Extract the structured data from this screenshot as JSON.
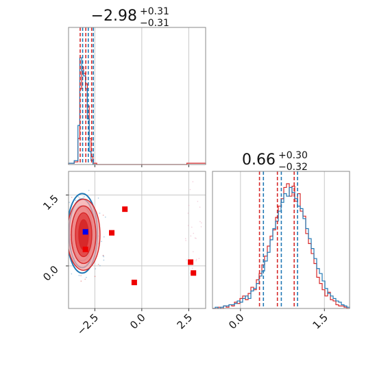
{
  "colors": {
    "red": "#d62728",
    "blue": "#1f77b4",
    "red_fill": "#f4a6a6",
    "red_fill_dark": "#e04040",
    "grid": "#c8c8c8",
    "frame": "#888888",
    "red_marker": "#ee0000",
    "blue_marker": "#0000ee"
  },
  "chart_data": [
    {
      "type": "histogram",
      "panel": "top-left",
      "title_value": "−2.98",
      "title_plus": "+0.31",
      "title_minus": "−0.31",
      "xlim": [
        -3.9,
        3.4
      ],
      "xticks": [
        -2.5,
        0.0,
        2.5
      ],
      "tick_labels_shown": false,
      "grid": true,
      "quantile_lines_red": [
        -3.28,
        -2.98,
        -2.67
      ],
      "quantile_lines_blue": [
        -3.15,
        -2.85,
        -2.58
      ],
      "series": [
        {
          "name": "",
          "color": "red",
          "bins": [
            [
              -3.9,
              -3.6,
              0.01
            ],
            [
              -3.6,
              -3.4,
              0.02
            ],
            [
              -3.4,
              -3.3,
              0.2
            ],
            [
              -3.3,
              -3.2,
              0.58
            ],
            [
              -3.2,
              -3.1,
              0.75
            ],
            [
              -3.1,
              -3.0,
              0.7
            ],
            [
              -3.0,
              -2.9,
              0.62
            ],
            [
              -2.9,
              -2.8,
              0.45
            ],
            [
              -2.8,
              -2.7,
              0.2
            ],
            [
              -2.7,
              -2.6,
              0.06
            ],
            [
              -2.6,
              -2.4,
              0.01
            ],
            [
              -2.4,
              2.4,
              0.0
            ],
            [
              2.4,
              3.4,
              0.01
            ]
          ]
        },
        {
          "name": "",
          "color": "blue",
          "bins": [
            [
              -3.9,
              -3.6,
              0.01
            ],
            [
              -3.6,
              -3.4,
              0.03
            ],
            [
              -3.4,
              -3.3,
              0.3
            ],
            [
              -3.3,
              -3.2,
              0.82
            ],
            [
              -3.2,
              -3.1,
              0.72
            ],
            [
              -3.1,
              -3.0,
              0.68
            ],
            [
              -3.0,
              -2.9,
              0.58
            ],
            [
              -2.9,
              -2.8,
              0.35
            ],
            [
              -2.8,
              -2.7,
              0.1
            ],
            [
              -2.7,
              -2.6,
              0.03
            ],
            [
              -2.6,
              -2.4,
              0.0
            ]
          ]
        }
      ]
    },
    {
      "type": "scatter",
      "panel": "bottom-left",
      "xlim": [
        -3.9,
        3.4
      ],
      "ylim": [
        -0.9,
        2.0
      ],
      "xticks": [
        -2.5,
        0.0,
        2.5
      ],
      "xtick_labels": [
        "−2.5",
        "0.0",
        "2.5"
      ],
      "yticks": [
        0.0,
        1.5
      ],
      "ytick_labels": [
        "0.0",
        "1.5"
      ],
      "grid": true,
      "contour_center": [
        -3.1,
        0.66
      ],
      "red_points": [
        [
          -3.0,
          0.35
        ],
        [
          -1.6,
          0.7
        ],
        [
          -0.9,
          1.2
        ],
        [
          -0.4,
          -0.35
        ],
        [
          2.6,
          0.08
        ],
        [
          2.75,
          -0.15
        ]
      ],
      "blue_points": [
        [
          -3.0,
          0.72
        ]
      ]
    },
    {
      "type": "histogram",
      "panel": "bottom-right",
      "title_value": "0.66",
      "title_plus": "+0.30",
      "title_minus": "−0.32",
      "xlim": [
        -0.5,
        1.95
      ],
      "xticks": [
        0.0,
        1.5
      ],
      "xtick_labels": [
        "0.0",
        "1.5"
      ],
      "grid": true,
      "quantile_lines_red": [
        0.34,
        0.66,
        0.96
      ],
      "quantile_lines_blue": [
        0.41,
        0.73,
        1.02
      ],
      "series": [
        {
          "name": "",
          "color": "red",
          "values": [
            0.0,
            0.0,
            0.01,
            0.0,
            0.02,
            0.01,
            0.03,
            0.02,
            0.05,
            0.04,
            0.08,
            0.1,
            0.07,
            0.12,
            0.17,
            0.15,
            0.23,
            0.28,
            0.35,
            0.42,
            0.5,
            0.58,
            0.63,
            0.73,
            0.82,
            0.88,
            0.97,
            1.0,
            0.9,
            0.98,
            0.86,
            0.92,
            0.78,
            0.74,
            0.6,
            0.52,
            0.44,
            0.36,
            0.25,
            0.2,
            0.15,
            0.1,
            0.13,
            0.07,
            0.06,
            0.03,
            0.02,
            0.02,
            0.01,
            0.0
          ]
        },
        {
          "name": "",
          "color": "blue",
          "values": [
            0.0,
            0.01,
            0.0,
            0.01,
            0.02,
            0.02,
            0.03,
            0.03,
            0.04,
            0.06,
            0.05,
            0.08,
            0.1,
            0.08,
            0.14,
            0.16,
            0.2,
            0.26,
            0.3,
            0.38,
            0.45,
            0.55,
            0.64,
            0.7,
            0.78,
            0.85,
            0.92,
            0.9,
            0.97,
            0.93,
            0.88,
            0.82,
            0.8,
            0.72,
            0.64,
            0.56,
            0.48,
            0.4,
            0.32,
            0.28,
            0.22,
            0.16,
            0.12,
            0.1,
            0.08,
            0.06,
            0.05,
            0.03,
            0.02,
            0.01
          ]
        }
      ]
    }
  ]
}
